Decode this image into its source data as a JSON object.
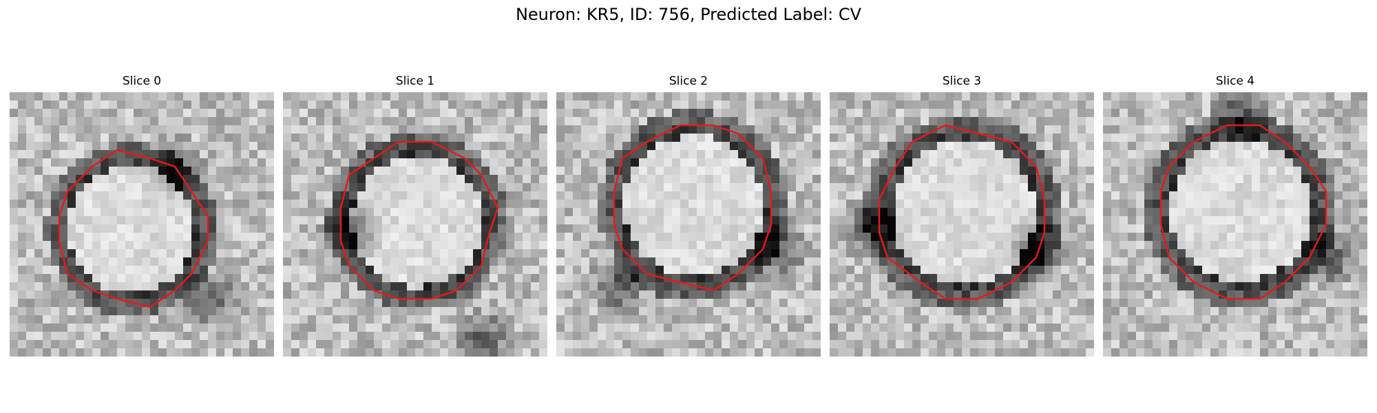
{
  "figure": {
    "title": "Neuron: KR5, ID: 756, Predicted Label: CV"
  },
  "panels": [
    {
      "title": "Slice 0"
    },
    {
      "title": "Slice 1"
    },
    {
      "title": "Slice 2"
    },
    {
      "title": "Slice 3"
    },
    {
      "title": "Slice 4"
    }
  ],
  "colors": {
    "contour": "#e41a1c",
    "background": "#ffffff"
  }
}
